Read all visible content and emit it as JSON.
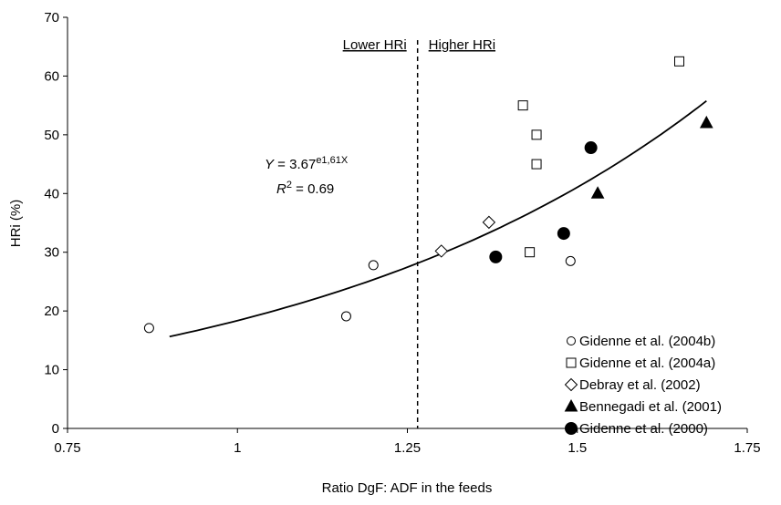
{
  "chart_data": {
    "type": "scatter",
    "x_label": "Ratio DgF: ADF in the feeds",
    "y_label": "HRi (%)",
    "xlim": [
      0.75,
      1.75
    ],
    "xticks": [
      0.75,
      1,
      1.25,
      1.5,
      1.75
    ],
    "ylim": [
      0,
      70
    ],
    "yticks": [
      0,
      10,
      20,
      30,
      40,
      50,
      60,
      70
    ],
    "legend": "lower-right",
    "series": [
      {
        "name": "Gidenne et al. (2004b)",
        "marker": "circle-open",
        "color": "#000000",
        "x": [
          0.87,
          1.16,
          1.2,
          1.49
        ],
        "values": [
          17.1,
          19.1,
          27.8,
          28.5
        ]
      },
      {
        "name": "Gidenne et al. (2004a)",
        "marker": "square-open",
        "color": "#000000",
        "x": [
          1.42,
          1.44,
          1.44,
          1.43,
          1.65
        ],
        "values": [
          55,
          50,
          45,
          30,
          62.5
        ]
      },
      {
        "name": "Debray et al. (2002)",
        "marker": "diamond-open",
        "color": "#000000",
        "x": [
          1.3,
          1.37
        ],
        "values": [
          30.2,
          35.1
        ]
      },
      {
        "name": "Bennegadi et al. (2001)",
        "marker": "triangle-filled",
        "color": "#000000",
        "x": [
          1.53,
          1.69
        ],
        "values": [
          40,
          52
        ]
      },
      {
        "name": "Gidenne et al. (2000)",
        "marker": "circle-filled",
        "color": "#000000",
        "x": [
          1.38,
          1.48,
          1.52
        ],
        "values": [
          29.2,
          33.2,
          47.8
        ]
      }
    ],
    "trendline": {
      "a": 3.67,
      "b": 1.61,
      "x_range": [
        0.9,
        1.69
      ]
    },
    "equation_parts": [
      "Y",
      " = 3.67",
      "e1,61X"
    ],
    "r2_parts": [
      "R",
      "2",
      " = 0.69"
    ],
    "divider": {
      "x": 1.265,
      "left_label": "Lower HRi",
      "right_label": "Higher HRi"
    }
  }
}
